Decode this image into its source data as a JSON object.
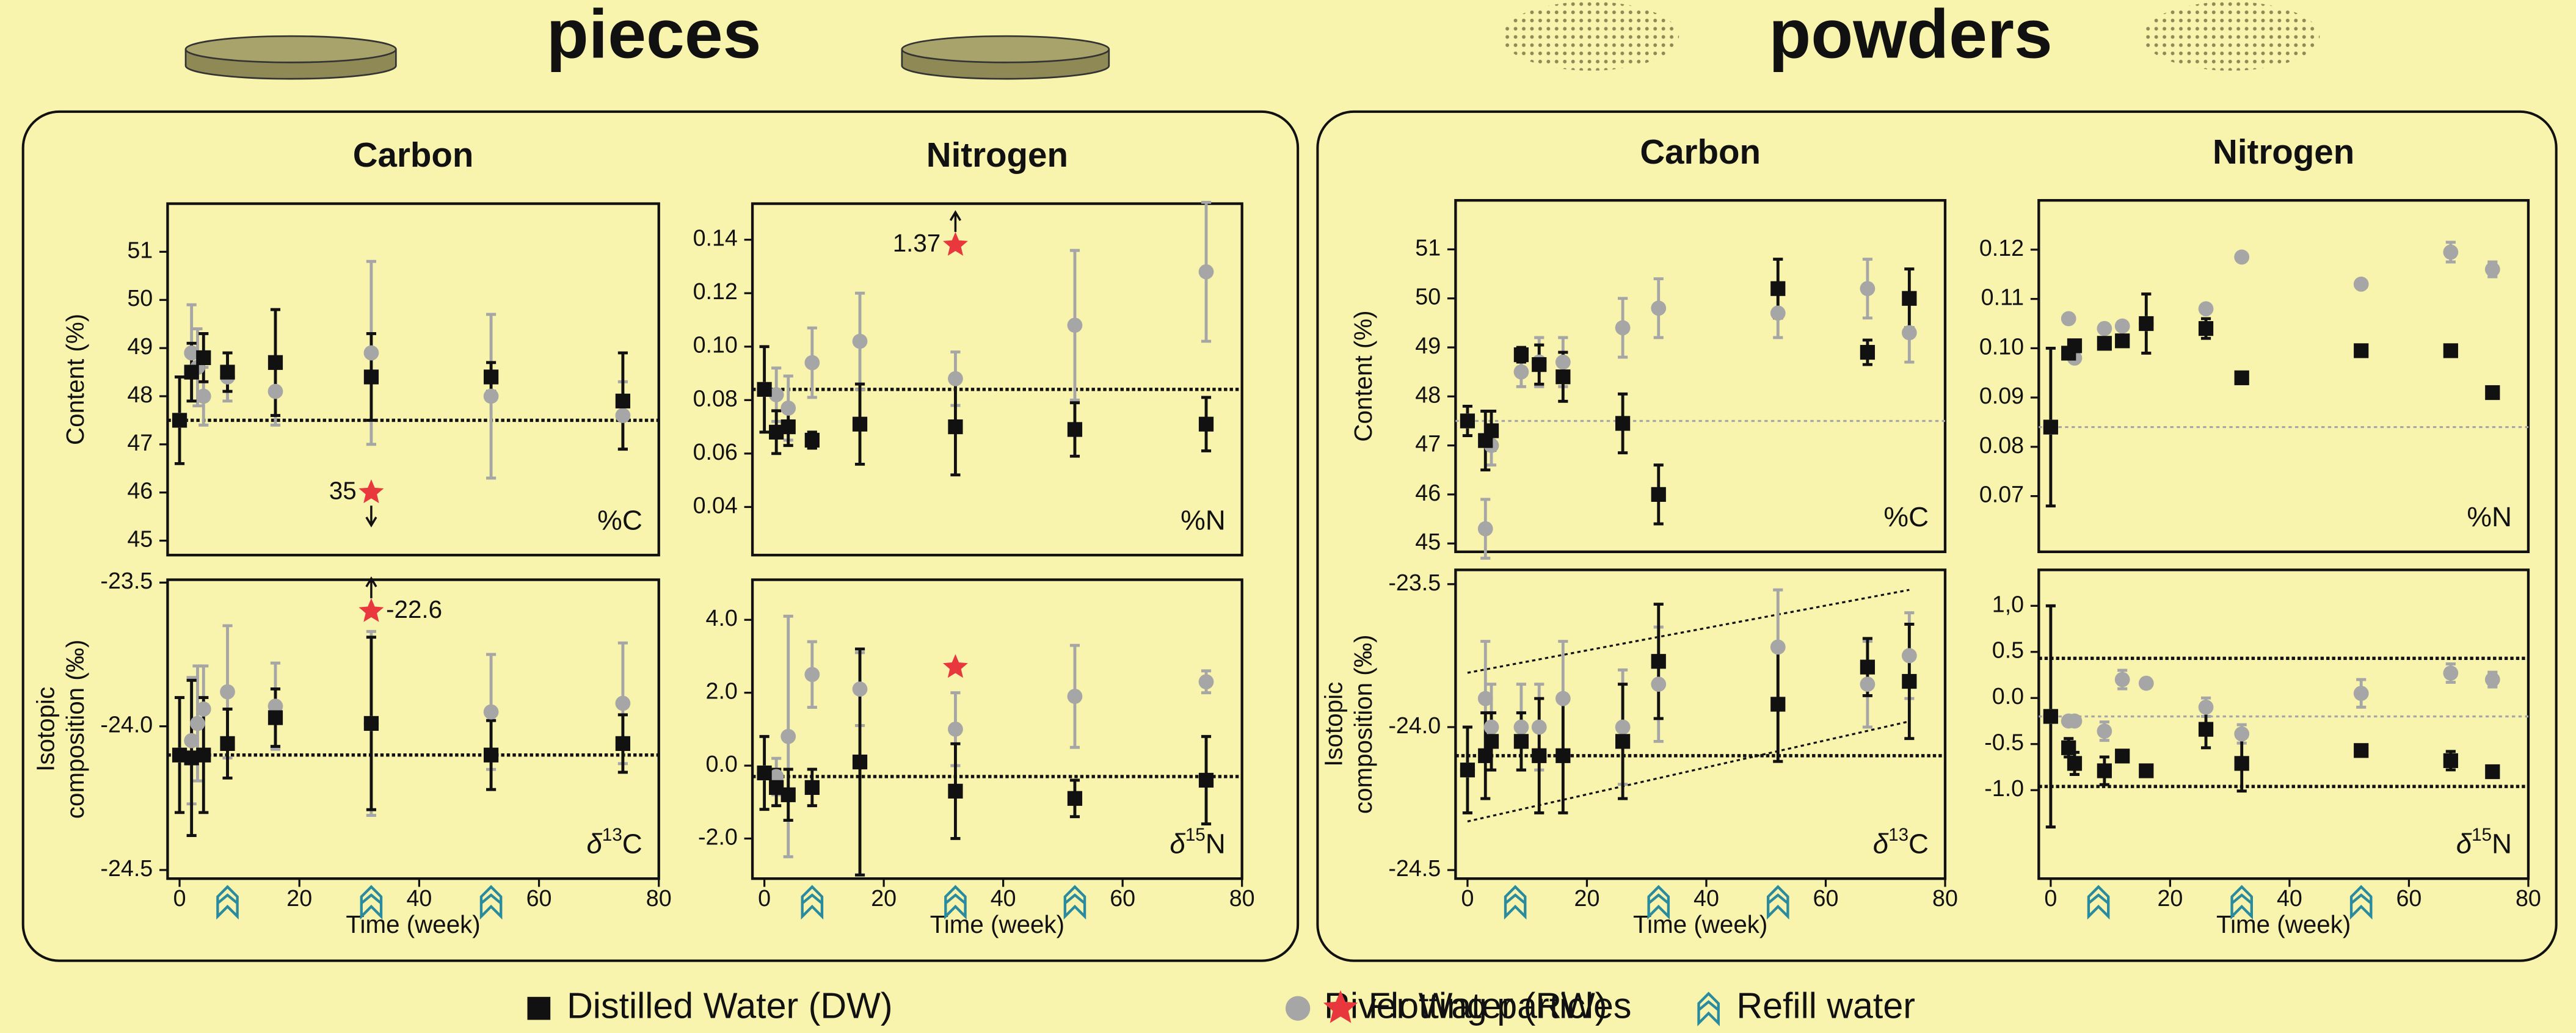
{
  "figure": {
    "groups": [
      {
        "title": "pieces"
      },
      {
        "title": "powders"
      }
    ],
    "legend": [
      {
        "name": "Distilled Water (DW)",
        "color": "#111111",
        "marker": "square"
      },
      {
        "name": "River Water (RW)",
        "color": "#a6a6a6",
        "marker": "circle"
      },
      {
        "name": "Flotting particles",
        "color": "#e8383d",
        "marker": "star"
      },
      {
        "name": "Refill water",
        "color": "#2a8a9e",
        "marker": "chevron"
      }
    ]
  },
  "chart_data": [
    {
      "type": "scatter",
      "title": "Carbon",
      "ylabel": [
        "Content (%)"
      ],
      "panel_label": [
        "%C"
      ],
      "xlim": [
        -2,
        80
      ],
      "ylim": [
        44.7,
        52
      ],
      "yticks": [
        45,
        46,
        47,
        48,
        49,
        50,
        51
      ],
      "series": [
        {
          "color": "#111111",
          "marker": "square",
          "x": [
            0,
            2,
            4,
            8,
            16,
            32,
            52,
            74
          ],
          "values": [
            47.5,
            48.5,
            48.8,
            48.5,
            48.7,
            48.4,
            48.4,
            47.9
          ],
          "errors": [
            0.9,
            0.6,
            0.5,
            0.4,
            1.1,
            0.9,
            0.3,
            1.0
          ]
        },
        {
          "color": "#a6a6a6",
          "marker": "circle",
          "x": [
            0,
            2,
            3,
            4,
            8,
            16,
            32,
            52,
            74
          ],
          "values": [
            47.5,
            48.9,
            48.6,
            48.0,
            48.4,
            48.1,
            48.9,
            48.0,
            47.6
          ],
          "errors": [
            null,
            1.0,
            0.8,
            0.6,
            0.5,
            0.7,
            1.9,
            1.7,
            0.7
          ]
        }
      ],
      "reference_lines": [
        {
          "y": 47.5,
          "color": "#111111"
        }
      ],
      "annotations": [
        {
          "x": 32,
          "y": 46,
          "text": "35",
          "arrow": "down"
        }
      ]
    },
    {
      "type": "scatter",
      "xlabel": "Time (week)",
      "ylabel": [
        "Isotopic",
        "composition (‰)"
      ],
      "panel_label": [
        "δ",
        "13",
        "C"
      ],
      "xlim": [
        -2,
        80
      ],
      "xticks": [
        0,
        20,
        40,
        60,
        80
      ],
      "ylim": [
        -24.53,
        -23.49
      ],
      "yticks": [
        -23.5,
        {
          "value": -24,
          "label": "-24.0"
        },
        -24.5
      ],
      "series": [
        {
          "color": "#111111",
          "marker": "square",
          "x": [
            0,
            2,
            4,
            8,
            16,
            32,
            52,
            74
          ],
          "values": [
            -24.1,
            -24.11,
            -24.1,
            -24.06,
            -23.97,
            -23.99,
            -24.1,
            -24.06
          ],
          "errors": [
            0.2,
            0.27,
            0.2,
            0.12,
            0.1,
            0.3,
            0.12,
            0.1
          ]
        },
        {
          "color": "#a6a6a6",
          "marker": "circle",
          "x": [
            0,
            2,
            3,
            4,
            8,
            16,
            32,
            52,
            74
          ],
          "values": [
            -24.1,
            -24.05,
            -23.99,
            -23.94,
            -23.88,
            -23.93,
            -23.99,
            -23.95,
            -23.92
          ],
          "errors": [
            null,
            0.22,
            0.2,
            0.15,
            0.23,
            0.15,
            0.32,
            0.2,
            0.21
          ]
        }
      ],
      "reference_lines": [
        {
          "y": -24.1,
          "color": "#111111"
        }
      ],
      "annotations": [
        {
          "x": 32,
          "y": -23.6,
          "text": "-22.6",
          "arrow": "up"
        }
      ],
      "refill_weeks": [
        8,
        32,
        52
      ]
    },
    {
      "type": "scatter",
      "title": "Nitrogen",
      "panel_label": [
        "%N"
      ],
      "xlim": [
        -2,
        80
      ],
      "ylim": [
        0.022,
        0.1535
      ],
      "yticks": [
        0.04,
        0.06,
        0.08,
        {
          "value": 0.1,
          "label": "0.10"
        },
        0.12,
        0.14
      ],
      "series": [
        {
          "color": "#111111",
          "marker": "square",
          "x": [
            0,
            2,
            4,
            8,
            16,
            32,
            52,
            74
          ],
          "values": [
            0.084,
            0.068,
            0.07,
            0.065,
            0.071,
            0.07,
            0.069,
            0.071
          ],
          "errors": [
            0.016,
            0.008,
            0.007,
            0.003,
            0.015,
            0.018,
            0.01,
            0.01
          ]
        },
        {
          "color": "#a6a6a6",
          "marker": "circle",
          "x": [
            0,
            2,
            4,
            8,
            16,
            32,
            52,
            74
          ],
          "values": [
            0.084,
            0.082,
            0.077,
            0.094,
            0.102,
            0.088,
            0.108,
            0.128
          ],
          "errors": [
            null,
            0.01,
            0.012,
            0.013,
            0.018,
            0.01,
            0.028,
            0.026
          ]
        }
      ],
      "reference_lines": [
        {
          "y": 0.084,
          "color": "#111111"
        }
      ],
      "annotations": [
        {
          "x": 32,
          "y": 0.138,
          "text": "1.37",
          "arrow": "up"
        }
      ]
    },
    {
      "type": "scatter",
      "xlabel": "Time (week)",
      "panel_label": [
        "δ",
        "15",
        "N"
      ],
      "xlim": [
        -2,
        80
      ],
      "xticks": [
        0,
        20,
        40,
        60,
        80
      ],
      "ylim": [
        -3.1,
        5.1
      ],
      "yticks": [
        {
          "value": -2,
          "label": "-2.0"
        },
        {
          "value": 0,
          "label": "0.0"
        },
        {
          "value": 2,
          "label": "2.0"
        },
        {
          "value": 4,
          "label": "4.0"
        }
      ],
      "series": [
        {
          "color": "#111111",
          "marker": "square",
          "x": [
            0,
            2,
            4,
            8,
            16,
            32,
            52,
            74
          ],
          "values": [
            -0.2,
            -0.6,
            -0.8,
            -0.6,
            0.1,
            -0.7,
            -0.9,
            -0.4
          ],
          "errors": [
            1.0,
            0.5,
            0.7,
            0.5,
            3.1,
            1.3,
            0.5,
            1.2
          ]
        },
        {
          "color": "#a6a6a6",
          "marker": "circle",
          "x": [
            0,
            2,
            4,
            8,
            16,
            32,
            52,
            74
          ],
          "values": [
            -0.2,
            -0.3,
            0.8,
            2.5,
            2.1,
            1.0,
            1.9,
            2.3
          ],
          "errors": [
            null,
            0.5,
            3.3,
            0.9,
            1.0,
            1.0,
            1.4,
            0.3
          ]
        }
      ],
      "reference_lines": [
        {
          "y": -0.3,
          "color": "#111111"
        }
      ],
      "annotations": [
        {
          "x": 32,
          "y": 2.7
        }
      ],
      "refill_weeks": [
        8,
        32,
        52
      ]
    },
    {
      "type": "scatter",
      "title": "Carbon",
      "ylabel": [
        "Content (%)"
      ],
      "panel_label": [
        "%C"
      ],
      "xlim": [
        -2,
        80
      ],
      "ylim": [
        44.83,
        52
      ],
      "yticks": [
        45,
        46,
        47,
        48,
        49,
        50,
        51
      ],
      "series": [
        {
          "color": "#111111",
          "marker": "square",
          "x": [
            0,
            3,
            4,
            9,
            12,
            16,
            26,
            32,
            52,
            67,
            74
          ],
          "values": [
            47.5,
            47.1,
            47.3,
            48.85,
            48.65,
            48.4,
            47.45,
            46.0,
            50.2,
            48.9,
            50.0
          ],
          "errors": [
            0.3,
            0.6,
            0.4,
            0.15,
            0.4,
            0.5,
            0.6,
            0.6,
            0.6,
            0.25,
            0.6
          ]
        },
        {
          "color": "#a6a6a6",
          "marker": "circle",
          "x": [
            0,
            3,
            4,
            9,
            12,
            16,
            26,
            32,
            52,
            67,
            74
          ],
          "values": [
            47.5,
            45.3,
            47.0,
            48.5,
            48.7,
            48.7,
            49.4,
            49.8,
            49.7,
            50.2,
            49.3
          ],
          "errors": [
            null,
            0.6,
            0.4,
            0.3,
            0.5,
            0.5,
            0.6,
            0.6,
            0.5,
            0.6,
            0.6
          ]
        }
      ],
      "reference_lines": [
        {
          "y": 47.5,
          "color": "#a6a6a6"
        }
      ]
    },
    {
      "type": "scatter",
      "xlabel": "Time (week)",
      "ylabel": [
        "Isotopic",
        "composition (‰)"
      ],
      "panel_label": [
        "δ",
        "13",
        "C"
      ],
      "xlim": [
        -2,
        80
      ],
      "xticks": [
        0,
        20,
        40,
        60,
        80
      ],
      "ylim": [
        -24.53,
        -23.45
      ],
      "yticks": [
        -23.5,
        {
          "value": -24,
          "label": "-24.0"
        },
        -24.5
      ],
      "series": [
        {
          "color": "#111111",
          "marker": "square",
          "x": [
            0,
            3,
            4,
            9,
            12,
            16,
            26,
            32,
            52,
            67,
            74
          ],
          "values": [
            -24.15,
            -24.1,
            -24.05,
            -24.05,
            -24.1,
            -24.1,
            -24.05,
            -23.77,
            -23.92,
            -23.79,
            -23.84
          ],
          "errors": [
            0.15,
            0.15,
            0.1,
            0.1,
            0.2,
            0.2,
            0.2,
            0.2,
            0.2,
            0.1,
            0.2
          ]
        },
        {
          "color": "#a6a6a6",
          "marker": "circle",
          "x": [
            0,
            3,
            4,
            9,
            12,
            16,
            26,
            32,
            52,
            67,
            74
          ],
          "values": [
            -24.15,
            -23.9,
            -24.0,
            -24.0,
            -24.0,
            -23.9,
            -24.0,
            -23.85,
            -23.72,
            -23.85,
            -23.75
          ],
          "errors": [
            null,
            0.2,
            0.15,
            0.15,
            0.15,
            0.2,
            0.2,
            0.2,
            0.2,
            0.15,
            0.15
          ]
        }
      ],
      "reference_lines": [
        {
          "y": -24.1,
          "color": "#111111"
        }
      ],
      "trend_lines": [
        {
          "x": [
            0,
            74
          ],
          "y": [
            -23.81,
            -23.52
          ]
        },
        {
          "x": [
            0,
            74
          ],
          "y": [
            -24.33,
            -23.98
          ]
        }
      ],
      "refill_weeks": [
        8,
        32,
        52
      ]
    },
    {
      "type": "scatter",
      "title": "Nitrogen",
      "panel_label": [
        "%N"
      ],
      "xlim": [
        -2,
        80
      ],
      "ylim": [
        0.0587,
        0.13
      ],
      "yticks": [
        0.07,
        0.08,
        0.09,
        {
          "value": 0.1,
          "label": "0.10"
        },
        0.11,
        0.12
      ],
      "series": [
        {
          "color": "#111111",
          "marker": "square",
          "x": [
            0,
            3,
            4,
            9,
            12,
            16,
            26,
            32,
            52,
            67,
            74
          ],
          "values": [
            0.084,
            0.099,
            0.1005,
            0.101,
            0.1015,
            0.105,
            0.104,
            0.094,
            0.0995,
            0.0995,
            0.091
          ],
          "errors": [
            0.016,
            null,
            null,
            null,
            null,
            0.006,
            0.002,
            0.001,
            null,
            null,
            null
          ]
        },
        {
          "color": "#a6a6a6",
          "marker": "circle",
          "x": [
            0,
            3,
            4,
            9,
            12,
            16,
            26,
            32,
            52,
            67,
            74
          ],
          "values": [
            0.084,
            0.106,
            0.098,
            0.104,
            0.1045,
            0.105,
            0.108,
            0.1185,
            0.113,
            0.1195,
            0.116
          ],
          "errors": [
            null,
            null,
            null,
            null,
            null,
            null,
            null,
            null,
            null,
            0.002,
            0.0015
          ]
        }
      ],
      "reference_lines": [
        {
          "y": 0.084,
          "color": "#a6a6a6"
        }
      ]
    },
    {
      "type": "scatter",
      "xlabel": "Time (week)",
      "panel_label": [
        "δ",
        "15",
        "N"
      ],
      "xlim": [
        -2,
        80
      ],
      "xticks": [
        0,
        20,
        40,
        60,
        80
      ],
      "ylim": [
        -1.96,
        1.39
      ],
      "yticks": [
        {
          "value": -1,
          "label": "-1.0"
        },
        -0.5,
        {
          "value": 0,
          "label": "0.0"
        },
        0.5,
        {
          "value": 1,
          "label": "1,0"
        }
      ],
      "series": [
        {
          "color": "#111111",
          "marker": "square",
          "x": [
            0,
            3,
            4,
            9,
            12,
            16,
            26,
            32,
            52,
            67,
            74
          ],
          "values": [
            -0.2,
            -0.54,
            -0.71,
            -0.79,
            -0.63,
            -0.79,
            -0.34,
            -0.71,
            -0.57,
            -0.68,
            -0.8
          ],
          "errors": [
            1.2,
            0.1,
            0.12,
            0.15,
            null,
            null,
            0.2,
            0.3,
            0.05,
            0.1,
            0.05
          ]
        },
        {
          "color": "#a6a6a6",
          "marker": "circle",
          "x": [
            0,
            3,
            4,
            9,
            12,
            16,
            26,
            32,
            52,
            67,
            74
          ],
          "values": [
            -0.2,
            -0.25,
            -0.25,
            -0.36,
            0.2,
            0.16,
            -0.1,
            -0.39,
            0.05,
            0.27,
            0.2
          ],
          "errors": [
            null,
            null,
            null,
            0.1,
            0.1,
            null,
            0.1,
            0.1,
            0.15,
            0.1,
            0.08
          ]
        }
      ],
      "reference_lines": [
        {
          "y": 0.43,
          "color": "#111111"
        },
        {
          "y": -0.2,
          "color": "#a6a6a6"
        },
        {
          "y": -0.96,
          "color": "#111111"
        }
      ],
      "refill_weeks": [
        8,
        32,
        52
      ]
    }
  ]
}
